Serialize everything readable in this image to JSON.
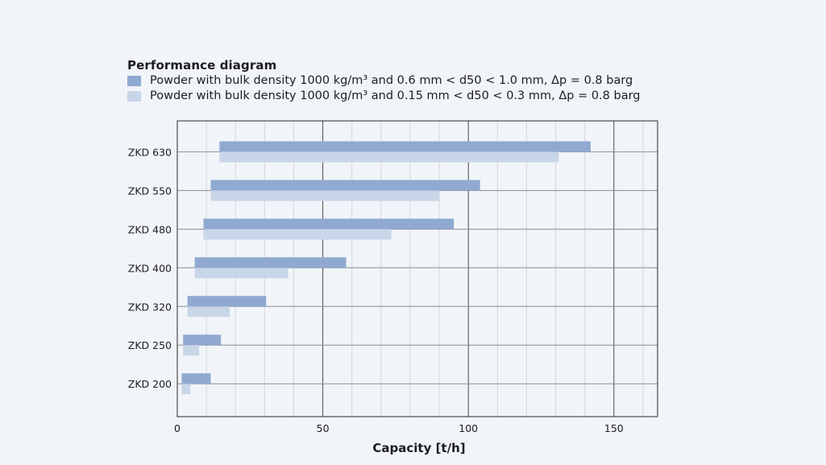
{
  "chart_data": {
    "type": "bar",
    "orientation": "horizontal",
    "title": "Performance diagram",
    "categories": [
      "ZKD 630",
      "ZKD 550",
      "ZKD 480",
      "ZKD 400",
      "ZKD 320",
      "ZKD 250",
      "ZKD 200"
    ],
    "series": [
      {
        "name": "Powder with bulk density 1000 kg/m³ and 0.6 mm < d50 < 1.0 mm, Δp = 0.8 barg",
        "color": "#8fa9d1",
        "start": [
          14.5,
          11.5,
          9,
          6,
          3.5,
          2,
          1.5
        ],
        "end": [
          142,
          104,
          95,
          58,
          30.5,
          15,
          11.5
        ]
      },
      {
        "name": "Powder with bulk density 1000 kg/m³ and 0.15 mm < d50 < 0.3 mm, Δp = 0.8 barg",
        "color": "#c9d5e8",
        "start": [
          14.5,
          11.5,
          9,
          6,
          3.5,
          2,
          1.5
        ],
        "end": [
          131,
          90,
          73.5,
          38,
          18,
          7.5,
          4.5
        ]
      }
    ],
    "xlabel": "Capacity [t/h]",
    "ylabel": "",
    "xlim": [
      0,
      165
    ],
    "xticks": [
      0,
      50,
      100,
      150
    ],
    "xtick_labels": [
      "0",
      "50",
      "100",
      "150"
    ],
    "minor_grid_step": 10,
    "grid": true,
    "legend_position": "top-left"
  }
}
